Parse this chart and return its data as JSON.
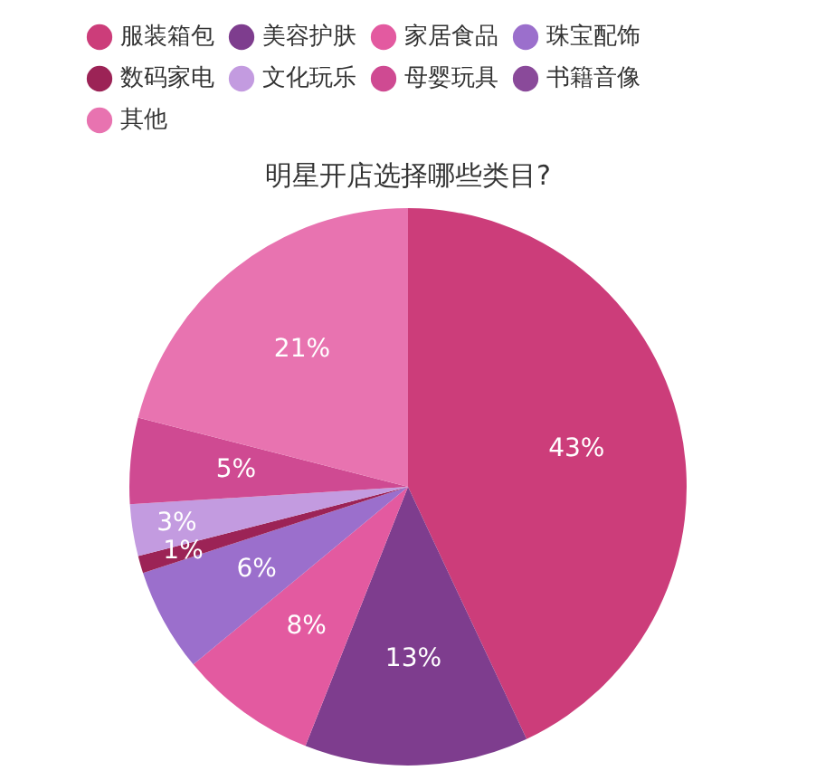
{
  "chart_data": {
    "type": "pie",
    "title": "明星开店选择哪些类目?",
    "categories": [
      "服装箱包",
      "美容护肤",
      "家居食品",
      "珠宝配饰",
      "数码家电",
      "文化玩乐",
      "母婴玩具",
      "书籍音像",
      "其他"
    ],
    "values": [
      43,
      13,
      8,
      6,
      1,
      3,
      5,
      0,
      21
    ],
    "value_labels": [
      "43%",
      "13%",
      "8%",
      "6%",
      "1%",
      "3%",
      "5%",
      null,
      "21%"
    ],
    "colors": [
      "#cc3d7a",
      "#7e3d8e",
      "#e35aa0",
      "#9b6fcc",
      "#9c2356",
      "#c39be0",
      "#cf4a92",
      "#8a4a9a",
      "#e873b0"
    ],
    "legend": "top"
  }
}
